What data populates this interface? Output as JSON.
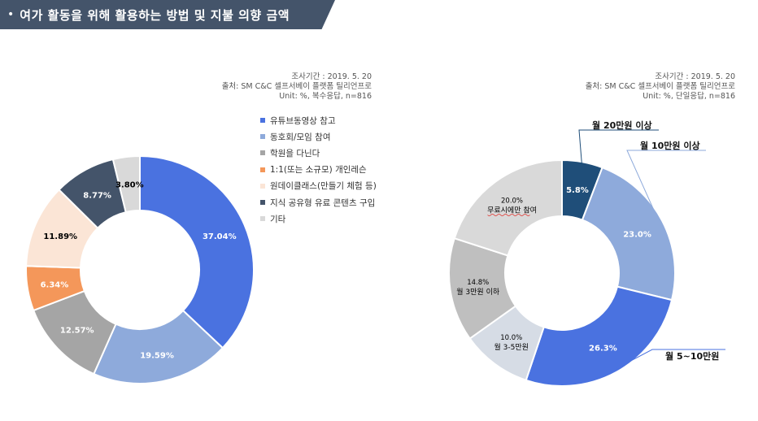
{
  "header": {
    "bullet": "•",
    "title": "여가 활동을 위해 활용하는 방법 및 지불 의향 금액"
  },
  "left_source": {
    "line1": "조사기간 : 2019. 5. 20",
    "line2": "출처: SM C&C 셀프서베이 플랫폼 틸리언프로",
    "line3": "Unit: %, 복수응답, n=816"
  },
  "right_source": {
    "line1": "조사기간 : 2019. 5. 20",
    "line2": "출처: SM C&C 셀프서베이 플랫폼 틸리언프로",
    "line3": "Unit: %, 단일응답, n=816"
  },
  "chart_data": [
    {
      "type": "pie",
      "donut": true,
      "categories": [
        "유튜브동영상 참고",
        "동호회/모임 참여",
        "학원을 다닌다",
        "1:1(또는 소규모) 개인레슨",
        "원데이클래스(만들기 체험 등)",
        "지식 공유형 유료 콘텐츠 구입",
        "기타"
      ],
      "values": [
        37.04,
        19.59,
        12.57,
        6.34,
        11.89,
        8.77,
        3.8
      ],
      "labels": [
        "37.04%",
        "19.59%",
        "12.57%",
        "6.34%",
        "11.89%",
        "8.77%",
        "3.80%"
      ],
      "colors": [
        "#4a72e0",
        "#8eaadb",
        "#a5a5a5",
        "#f4975a",
        "#fbe5d6",
        "#44546a",
        "#d9d9d9"
      ],
      "label_colors": [
        "#ffffff",
        "#ffffff",
        "#ffffff",
        "#ffffff",
        "#000000",
        "#ffffff",
        "#000000"
      ],
      "legend_position": "right"
    },
    {
      "type": "pie",
      "donut": true,
      "categories": [
        "월 20만원 이상",
        "월 10만원 이상",
        "월 5~10만원",
        "월 3-5만원",
        "월 3만원 이하",
        "무료시에만 참여"
      ],
      "values": [
        5.8,
        23.0,
        26.3,
        10.0,
        14.8,
        20.0
      ],
      "labels": [
        "5.8%",
        "23.0%",
        "26.3%",
        "10.0%",
        "14.8%",
        "20.0%"
      ],
      "inner_names": [
        "",
        "",
        "",
        "월 3-5만원",
        "월 3만원 이하",
        "무료시에만 참여"
      ],
      "callouts": [
        "월 20만원 이상",
        "월 10만원 이상",
        "월 5~10만원"
      ],
      "colors": [
        "#1f4e79",
        "#8eaadb",
        "#4a72e0",
        "#d6dce5",
        "#bfbfbf",
        "#d9d9d9"
      ],
      "label_colors": [
        "#ffffff",
        "#ffffff",
        "#ffffff",
        "#000000",
        "#000000",
        "#000000"
      ]
    }
  ]
}
